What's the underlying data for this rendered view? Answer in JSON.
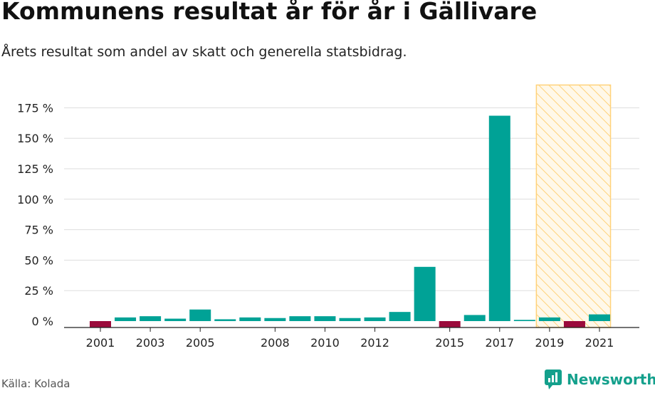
{
  "title": "Kommunens resultat år för år i Gällivare",
  "subtitle": "Årets resultat som andel av skatt och generella statsbidrag.",
  "source": "Källa: Kolada",
  "brand": "Newsworthy",
  "chart_data": {
    "type": "bar",
    "categories": [
      "2001",
      "2002",
      "2003",
      "2004",
      "2005",
      "2006",
      "2007",
      "2008",
      "2009",
      "2010",
      "2011",
      "2012",
      "2013",
      "2014",
      "2015",
      "2016",
      "2017",
      "2018",
      "2019",
      "2020",
      "2021"
    ],
    "values": [
      -5,
      3,
      4,
      2,
      9.5,
      1.5,
      3,
      2.5,
      4,
      4,
      2.5,
      3,
      7.5,
      44.5,
      -5.5,
      5,
      168.5,
      1,
      3,
      -5,
      5.5
    ],
    "xtick_labels": [
      "2001",
      "2003",
      "2005",
      "2008",
      "2010",
      "2012",
      "2015",
      "2017",
      "2019",
      "2021"
    ],
    "yticks": [
      0,
      25,
      50,
      75,
      100,
      125,
      150,
      175
    ],
    "ytick_labels": [
      "0 %",
      "25 %",
      "50 %",
      "75 %",
      "100 %",
      "125 %",
      "150 %",
      "175 %"
    ],
    "ylim": [
      -5.5,
      175
    ],
    "colors": {
      "positive": "#00a296",
      "negative": "#9b0b3c",
      "highlight_fill": "#ffd27a",
      "highlight_border": "#ffd27a"
    },
    "highlight_range": [
      "2019",
      "2021"
    ],
    "grid": true
  }
}
